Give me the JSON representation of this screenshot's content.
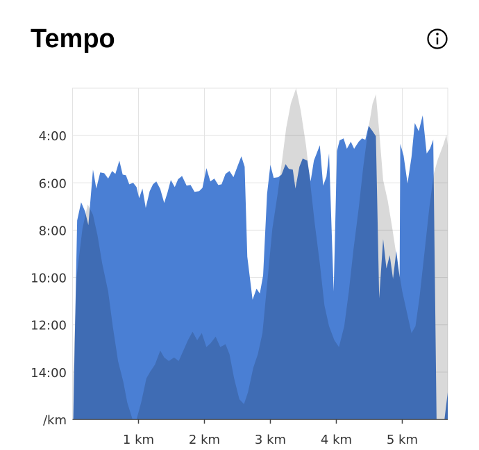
{
  "chart_data": {
    "type": "area",
    "title": "Tempo",
    "xlim": [
      0,
      5.69
    ],
    "ylim": [
      16,
      2
    ],
    "xticks": [
      {
        "value": 1,
        "label": "1 km"
      },
      {
        "value": 2,
        "label": "2 km"
      },
      {
        "value": 3,
        "label": "3 km"
      },
      {
        "value": 4,
        "label": "4 km"
      },
      {
        "value": 5,
        "label": "5 km"
      }
    ],
    "yticks": [
      {
        "value": 4,
        "label": "4:00"
      },
      {
        "value": 6,
        "label": "6:00"
      },
      {
        "value": 8,
        "label": "8:00"
      },
      {
        "value": 10,
        "label": "10:00"
      },
      {
        "value": 12,
        "label": "12:00"
      },
      {
        "value": 14,
        "label": "14:00"
      },
      {
        "value": 16,
        "label": "/km"
      }
    ],
    "grid": true,
    "series": [
      {
        "color": "#4a7fd4",
        "x": [
          0.01,
          0.07,
          0.13,
          0.19,
          0.24,
          0.31,
          0.36,
          0.42,
          0.48,
          0.54,
          0.6,
          0.65,
          0.71,
          0.76,
          0.81,
          0.86,
          0.92,
          0.97,
          1.01,
          1.06,
          1.11,
          1.17,
          1.22,
          1.27,
          1.33,
          1.39,
          1.44,
          1.49,
          1.55,
          1.6,
          1.66,
          1.73,
          1.79,
          1.85,
          1.92,
          1.97,
          2.03,
          2.09,
          2.15,
          2.21,
          2.26,
          2.32,
          2.38,
          2.44,
          2.51,
          2.56,
          2.61,
          2.65,
          2.73,
          2.79,
          2.84,
          2.89,
          2.95,
          3.0,
          3.05,
          3.12,
          3.17,
          3.23,
          3.28,
          3.34,
          3.38,
          3.44,
          3.49,
          3.56,
          3.61,
          3.66,
          3.75,
          3.8,
          3.85,
          3.89,
          3.96,
          4.01,
          4.05,
          4.11,
          4.16,
          4.22,
          4.27,
          4.34,
          4.39,
          4.44,
          4.49,
          4.55,
          4.6,
          4.65,
          4.71,
          4.76,
          4.81,
          4.86,
          4.91,
          4.96,
          4.97,
          5.02,
          5.08,
          5.14,
          5.19,
          5.25,
          5.31,
          5.37,
          5.42,
          5.47,
          5.52,
          5.64,
          5.69
        ],
        "values": [
          16,
          7.59,
          6.82,
          7.21,
          7.79,
          5.44,
          6.24,
          5.56,
          5.59,
          5.82,
          5.5,
          5.62,
          5.06,
          5.65,
          5.68,
          6.06,
          6.0,
          6.18,
          6.65,
          6.24,
          7.06,
          6.35,
          6.06,
          5.94,
          6.26,
          6.85,
          6.41,
          5.88,
          6.18,
          5.85,
          5.71,
          6.12,
          6.09,
          6.38,
          6.35,
          6.21,
          5.38,
          5.94,
          5.82,
          6.09,
          6.06,
          5.62,
          5.5,
          5.76,
          5.24,
          4.88,
          5.32,
          9.12,
          10.94,
          10.47,
          10.68,
          9.91,
          6.47,
          5.24,
          5.79,
          5.76,
          5.65,
          5.21,
          5.41,
          5.44,
          6.24,
          5.32,
          4.97,
          5.06,
          5.94,
          5.06,
          4.41,
          6.12,
          5.74,
          4.76,
          10.59,
          4.65,
          4.21,
          4.12,
          4.56,
          4.26,
          4.56,
          4.26,
          4.12,
          4.18,
          3.59,
          3.82,
          4.03,
          10.88,
          8.38,
          9.62,
          9.06,
          10.06,
          8.88,
          10.0,
          4.35,
          4.85,
          6.03,
          4.91,
          3.47,
          3.82,
          3.15,
          4.76,
          4.56,
          4.18,
          16,
          16,
          14.85
        ]
      },
      {
        "color": "#d9d9d9",
        "x": [
          0.01,
          0.06,
          0.15,
          0.23,
          0.31,
          0.38,
          0.45,
          0.54,
          0.61,
          0.69,
          0.77,
          0.83,
          0.91,
          0.97,
          1.04,
          1.12,
          1.18,
          1.25,
          1.33,
          1.39,
          1.46,
          1.54,
          1.61,
          1.68,
          1.75,
          1.82,
          1.89,
          1.96,
          2.03,
          2.09,
          2.17,
          2.24,
          2.32,
          2.38,
          2.45,
          2.53,
          2.6,
          2.66,
          2.74,
          2.81,
          2.88,
          2.96,
          3.03,
          3.11,
          3.18,
          3.24,
          3.31,
          3.39,
          3.46,
          3.54,
          3.6,
          3.67,
          3.75,
          3.82,
          3.89,
          3.97,
          4.04,
          4.12,
          4.19,
          4.26,
          4.34,
          4.41,
          4.48,
          4.55,
          4.6,
          4.65,
          4.71,
          4.78,
          4.85,
          4.93,
          5.0,
          5.07,
          5.14,
          5.2,
          5.26,
          5.33,
          5.41,
          5.48,
          5.54,
          5.62,
          5.67,
          5.69
        ],
        "values": [
          14.12,
          10,
          7.94,
          6.91,
          7.35,
          8.24,
          9.41,
          10.59,
          12.06,
          13.53,
          14.41,
          15.29,
          16,
          16,
          15.29,
          14.26,
          13.97,
          13.68,
          13.09,
          13.38,
          13.53,
          13.38,
          13.53,
          13.09,
          12.65,
          12.29,
          12.65,
          12.35,
          12.94,
          12.79,
          12.5,
          12.94,
          12.82,
          13.24,
          14.26,
          15.15,
          15.35,
          14.85,
          13.82,
          13.24,
          12.35,
          10,
          7.94,
          6.47,
          5,
          3.68,
          2.65,
          2,
          2.94,
          4.41,
          5.88,
          7.65,
          9.41,
          11.18,
          12.06,
          12.65,
          12.94,
          12.06,
          10.59,
          8.82,
          7.06,
          5.29,
          3.82,
          2.65,
          2.26,
          3.82,
          5.88,
          6.76,
          7.94,
          9.41,
          10.59,
          11.47,
          12.35,
          12.06,
          10.88,
          9.12,
          7.06,
          5.59,
          5,
          4.41,
          3.97,
          4.41
        ]
      }
    ]
  }
}
